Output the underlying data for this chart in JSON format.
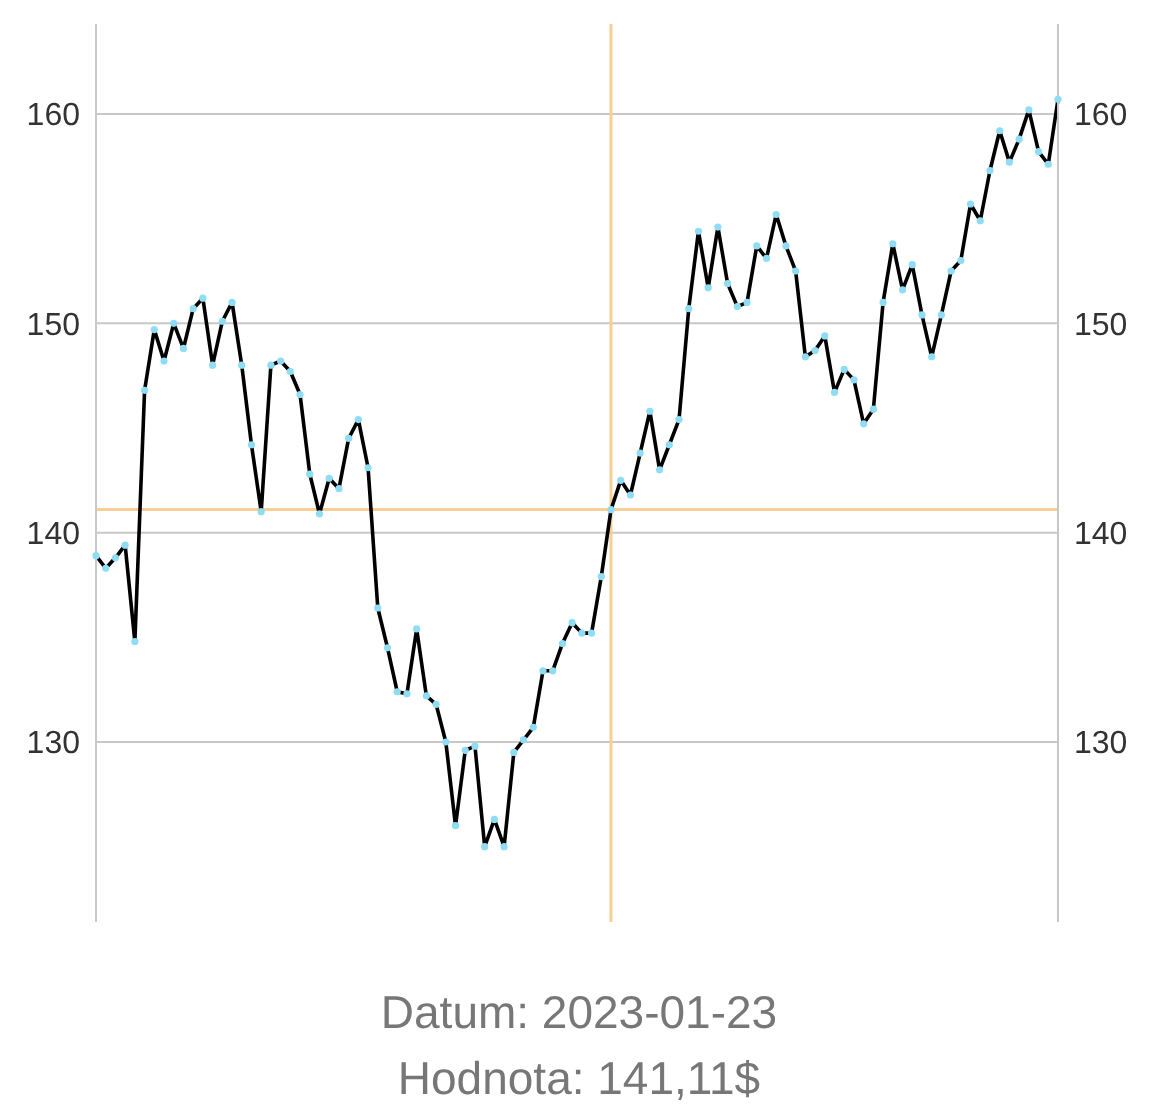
{
  "chart_data": {
    "type": "line",
    "categories": [
      null,
      null,
      null,
      null,
      null,
      null,
      null,
      null,
      null,
      null,
      null,
      null,
      null,
      null,
      null,
      null,
      null,
      null,
      null,
      null,
      null,
      null,
      null,
      null,
      null,
      null,
      null,
      null,
      null,
      null,
      null,
      null,
      null,
      null,
      null,
      null,
      null,
      null,
      null,
      null,
      null,
      null,
      null,
      null,
      null,
      null,
      null,
      null,
      null,
      null,
      null,
      null,
      null,
      null,
      null,
      null,
      null,
      null,
      null,
      null,
      null,
      null,
      null,
      null,
      null,
      null,
      null,
      null,
      null,
      null,
      null,
      null,
      null,
      null,
      null,
      null,
      null,
      null,
      null,
      null,
      null,
      null,
      null,
      null,
      null,
      null,
      null,
      null,
      null,
      null,
      null,
      null,
      null,
      null,
      null,
      null,
      null,
      null,
      null,
      null
    ],
    "series": [
      {
        "color": "#000000",
        "values": [
          138.9,
          138.3,
          138.8,
          139.4,
          134.8,
          146.8,
          149.7,
          148.2,
          150.0,
          148.8,
          150.7,
          151.2,
          148.0,
          150.1,
          151.0,
          148.0,
          144.2,
          141.0,
          148.0,
          148.2,
          147.7,
          146.6,
          142.8,
          140.9,
          142.6,
          142.1,
          144.5,
          145.4,
          143.1,
          136.4,
          134.5,
          132.4,
          132.3,
          135.4,
          132.2,
          131.8,
          130.0,
          126.0,
          129.6,
          129.8,
          125.0,
          126.3,
          125.0,
          129.5,
          130.1,
          130.7,
          133.4,
          133.4,
          134.7,
          135.7,
          135.2,
          135.2,
          137.9,
          141.1,
          142.5,
          141.8,
          143.8,
          145.8,
          143.0,
          144.2,
          145.4,
          150.7,
          154.4,
          151.7,
          154.6,
          151.9,
          150.8,
          151.0,
          153.7,
          153.1,
          155.2,
          153.7,
          152.5,
          148.4,
          148.7,
          149.4,
          146.7,
          147.8,
          147.3,
          145.2,
          145.9,
          151.0,
          153.8,
          151.6,
          152.8,
          150.4,
          148.4,
          150.4,
          152.5,
          153.0,
          155.7,
          154.9,
          157.3,
          159.2,
          157.7,
          158.8,
          160.2,
          158.2,
          157.6,
          160.7
        ]
      }
    ],
    "ylim": [
      121.4,
      164.3
    ],
    "yticks": [
      130,
      140,
      150,
      160
    ],
    "y2lim": [
      121.4,
      164.3
    ],
    "y2ticks": [
      130,
      140,
      150,
      160
    ],
    "grid": "y",
    "tick_labels": "y",
    "marker": "circle",
    "legend": false,
    "ref_lines": [
      {
        "axis": "y",
        "value": 141.11,
        "color": "#f7cf95"
      }
    ],
    "annotations": [
      "Datum: 2023-01-23",
      "Hodnota: 141,11$"
    ]
  }
}
